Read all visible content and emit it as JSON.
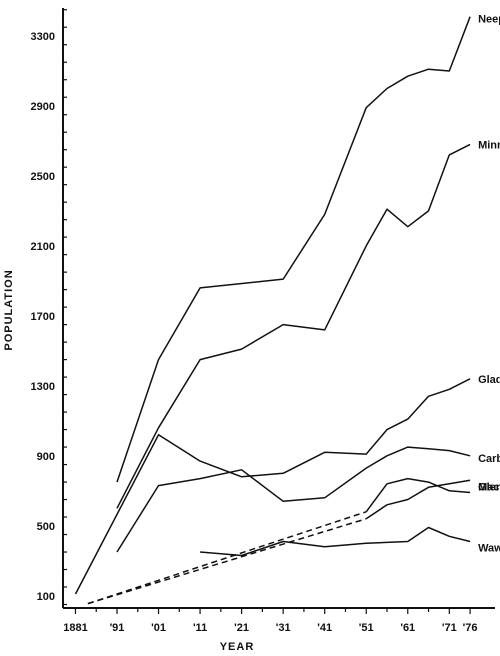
{
  "chart_data": {
    "type": "line",
    "xlabel": "YEAR",
    "ylabel": "POPULATION",
    "x_tick_labels": [
      "1881",
      "'91",
      "'01",
      "'11",
      "'21",
      "'31",
      "'41",
      "'51",
      "'61",
      "'71",
      "'76"
    ],
    "x_tick_values": [
      1881,
      1891,
      1901,
      1911,
      1921,
      1931,
      1941,
      1951,
      1961,
      1971,
      1976
    ],
    "y_ticks": [
      100,
      500,
      900,
      1300,
      1700,
      2100,
      2500,
      2900,
      3300
    ],
    "xlim": [
      1878,
      1982
    ],
    "ylim": [
      30,
      3460
    ],
    "grid": false,
    "series": [
      {
        "name": "Neepawa",
        "x": [
          1891,
          1901,
          1911,
          1931,
          1941,
          1951,
          1956,
          1961,
          1966,
          1971,
          1976
        ],
        "y": [
          750,
          1450,
          1860,
          1910,
          2280,
          2890,
          3000,
          3070,
          3110,
          3100,
          3410
        ]
      },
      {
        "name": "Minnedosa",
        "x": [
          1891,
          1901,
          1911,
          1921,
          1931,
          1941,
          1951,
          1956,
          1961,
          1966,
          1971,
          1976
        ],
        "y": [
          600,
          1060,
          1450,
          1510,
          1650,
          1620,
          2100,
          2310,
          2210,
          2300,
          2620,
          2680
        ]
      },
      {
        "name": "Carberry",
        "x": [
          1891,
          1901,
          1911,
          1921,
          1931,
          1941,
          1951,
          1956,
          1961,
          1966,
          1971,
          1976
        ],
        "y": [
          350,
          730,
          770,
          820,
          640,
          660,
          830,
          900,
          950,
          940,
          930,
          900
        ]
      },
      {
        "name": "Gladstone",
        "x": [
          1881,
          1901,
          1911,
          1921,
          1931,
          1941,
          1951,
          1956,
          1961,
          1966,
          1971,
          1976
        ],
        "y": [
          110,
          1020,
          870,
          780,
          800,
          920,
          910,
          1050,
          1110,
          1240,
          1280,
          1340
        ]
      },
      {
        "name": "Mac Gregor",
        "x": [
          1951,
          1956,
          1961,
          1966,
          1971,
          1976
        ],
        "y": [
          580,
          740,
          770,
          750,
          700,
          690
        ]
      },
      {
        "name": "Glenboro",
        "x": [
          1951,
          1956,
          1961,
          1966,
          1971,
          1976
        ],
        "y": [
          540,
          620,
          650,
          720,
          740,
          760
        ]
      },
      {
        "name": "Wawanesa",
        "x": [
          1911,
          1921,
          1931,
          1941,
          1951,
          1961,
          1966,
          1971,
          1976
        ],
        "y": [
          350,
          330,
          410,
          380,
          400,
          410,
          490,
          440,
          410
        ]
      },
      {
        "x": [
          1884,
          1951
        ],
        "y": [
          55,
          580
        ],
        "dashed": true
      },
      {
        "x": [
          1884,
          1951
        ],
        "y": [
          55,
          540
        ],
        "dashed": true
      }
    ]
  }
}
